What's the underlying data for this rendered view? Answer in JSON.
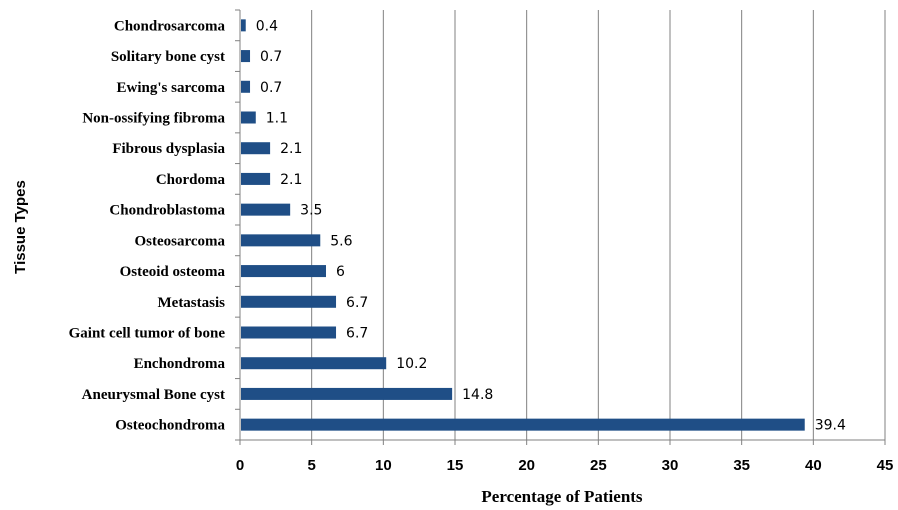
{
  "chart_data": {
    "type": "bar",
    "orientation": "horizontal",
    "categories": [
      "Osteochondroma",
      "Aneurysmal Bone cyst",
      "Enchondroma",
      "Gaint cell tumor of bone",
      "Metastasis",
      "Osteoid osteoma",
      "Osteosarcoma",
      "Chondroblastoma",
      "Chordoma",
      "Fibrous dysplasia",
      "Non-ossifying fibroma",
      "Ewing's sarcoma",
      "Solitary bone cyst",
      "Chondrosarcoma"
    ],
    "values": [
      39.4,
      14.8,
      10.2,
      6.7,
      6.7,
      6,
      5.6,
      3.5,
      2.1,
      2.1,
      1.1,
      0.7,
      0.7,
      0.4
    ],
    "data_labels": [
      "39.4",
      "14.8",
      "10.2",
      "6.7",
      "6.7",
      "6",
      "5.6",
      "3.5",
      "2.1",
      "2.1",
      "1.1",
      "0.7",
      "0.7",
      "0.4"
    ],
    "xlabel": "Percentage of Patients",
    "ylabel": "Tissue Types",
    "xlim": [
      0,
      45
    ],
    "xticks": [
      0,
      5,
      10,
      15,
      20,
      25,
      30,
      35,
      40,
      45
    ],
    "grid": "vertical",
    "legend": "none",
    "bar_color": "#1f4e86"
  }
}
